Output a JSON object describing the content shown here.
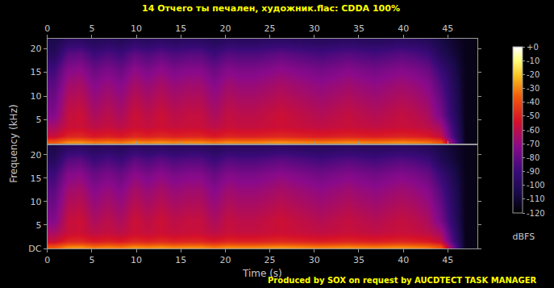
{
  "chart_data": {
    "type": "heatmap",
    "title": "14 Отчего ты печален, художник.flac: CDDA 100%",
    "footer": "Produced by SOX on request by AUCDTECT TASK MANAGER",
    "x_label": "Time (s)",
    "y_label": "Frequency (kHz)",
    "xlim": [
      0,
      48.3
    ],
    "xticks": [
      0,
      5,
      10,
      15,
      20,
      25,
      30,
      35,
      40,
      45
    ],
    "ylim": [
      0,
      22.05
    ],
    "grid": false,
    "x": [
      0.75,
      2.25,
      3.75,
      5.25,
      6.75,
      8.25,
      9.75,
      11.25,
      12.75,
      14.25,
      15.75,
      17.25,
      18.75,
      20.25,
      21.75,
      23.25,
      24.75,
      26.25,
      27.75,
      29.25,
      30.75,
      32.25,
      33.75,
      35.25,
      36.75,
      38.25,
      39.75,
      41.25,
      42.75,
      44.25,
      46.9
    ],
    "y": [
      0.4,
      1.5,
      3.5,
      6,
      9,
      12.5,
      16,
      19,
      21.5
    ],
    "channels": [
      {
        "yticks": [
          5,
          10,
          15,
          20
        ],
        "z": [
          [
            -37,
            -29,
            -28,
            -32,
            -30,
            -32,
            -28,
            -30,
            -28,
            -30,
            -29,
            -29,
            -32,
            -29,
            -30,
            -30,
            -29,
            -28,
            -29,
            -30,
            -31,
            -30,
            -29,
            -30,
            -31,
            -30,
            -29,
            -30,
            -32,
            -38,
            -115
          ],
          [
            -57,
            -49,
            -48,
            -52,
            -50,
            -52,
            -48,
            -50,
            -48,
            -50,
            -49,
            -49,
            -52,
            -49,
            -50,
            -50,
            -49,
            -48,
            -49,
            -50,
            -51,
            -50,
            -49,
            -50,
            -51,
            -50,
            -49,
            -50,
            -52,
            -58,
            -115
          ],
          [
            -65,
            -57,
            -56,
            -60,
            -58,
            -60,
            -56,
            -58,
            -56,
            -58,
            -57,
            -57,
            -60,
            -57,
            -58,
            -58,
            -57,
            -56,
            -57,
            -58,
            -59,
            -58,
            -57,
            -58,
            -59,
            -58,
            -57,
            -58,
            -60,
            -66,
            -115
          ],
          [
            -74,
            -58,
            -56,
            -64,
            -60,
            -64,
            -56,
            -60,
            -56,
            -60,
            -58,
            -58,
            -64,
            -58,
            -60,
            -60,
            -58,
            -56,
            -58,
            -60,
            -62,
            -60,
            -58,
            -60,
            -62,
            -60,
            -58,
            -60,
            -64,
            -76,
            -115
          ],
          [
            -78,
            -62,
            -60,
            -68,
            -64,
            -68,
            -60,
            -64,
            -60,
            -64,
            -62,
            -62,
            -68,
            -62,
            -64,
            -64,
            -62,
            -60,
            -62,
            -64,
            -66,
            -64,
            -62,
            -64,
            -66,
            -64,
            -62,
            -64,
            -68,
            -80,
            -115
          ],
          [
            -83,
            -67,
            -65,
            -73,
            -69,
            -73,
            -65,
            -69,
            -65,
            -69,
            -67,
            -67,
            -73,
            -67,
            -69,
            -69,
            -67,
            -65,
            -67,
            -69,
            -71,
            -69,
            -67,
            -69,
            -71,
            -69,
            -67,
            -69,
            -73,
            -85,
            -115
          ],
          [
            -90,
            -74,
            -72,
            -80,
            -76,
            -80,
            -72,
            -76,
            -72,
            -76,
            -74,
            -74,
            -80,
            -74,
            -76,
            -76,
            -74,
            -72,
            -74,
            -76,
            -78,
            -76,
            -74,
            -76,
            -78,
            -76,
            -74,
            -76,
            -80,
            -92,
            -115
          ],
          [
            -100,
            -84,
            -82,
            -90,
            -86,
            -90,
            -82,
            -86,
            -82,
            -86,
            -84,
            -84,
            -90,
            -84,
            -86,
            -86,
            -84,
            -82,
            -84,
            -86,
            -88,
            -86,
            -84,
            -86,
            -88,
            -86,
            -84,
            -86,
            -90,
            -102,
            -115
          ],
          [
            -105,
            -97,
            -96,
            -100,
            -98,
            -100,
            -96,
            -98,
            -96,
            -98,
            -97,
            -97,
            -100,
            -97,
            -98,
            -98,
            -97,
            -96,
            -97,
            -98,
            -99,
            -98,
            -97,
            -98,
            -99,
            -98,
            -97,
            -98,
            -100,
            -106,
            -115
          ]
        ]
      },
      {
        "yticks": [
          {
            "value": 0,
            "label": "DC"
          },
          5,
          10,
          15,
          20
        ],
        "z": [
          [
            -37,
            -29,
            -28,
            -32,
            -30,
            -32,
            -28,
            -30,
            -28,
            -30,
            -29,
            -29,
            -32,
            -29,
            -30,
            -30,
            -29,
            -28,
            -29,
            -30,
            -31,
            -30,
            -29,
            -30,
            -31,
            -30,
            -29,
            -30,
            -32,
            -38,
            -115
          ],
          [
            -57,
            -49,
            -48,
            -52,
            -50,
            -52,
            -48,
            -50,
            -48,
            -50,
            -49,
            -49,
            -52,
            -49,
            -50,
            -50,
            -49,
            -48,
            -49,
            -50,
            -51,
            -50,
            -49,
            -50,
            -51,
            -50,
            -49,
            -50,
            -52,
            -58,
            -115
          ],
          [
            -65,
            -57,
            -56,
            -60,
            -58,
            -60,
            -56,
            -58,
            -56,
            -58,
            -57,
            -57,
            -60,
            -57,
            -58,
            -58,
            -57,
            -56,
            -57,
            -58,
            -59,
            -58,
            -57,
            -58,
            -59,
            -58,
            -57,
            -58,
            -60,
            -66,
            -115
          ],
          [
            -74,
            -58,
            -56,
            -64,
            -60,
            -64,
            -56,
            -60,
            -56,
            -60,
            -58,
            -58,
            -64,
            -58,
            -60,
            -60,
            -58,
            -56,
            -58,
            -60,
            -62,
            -60,
            -58,
            -60,
            -62,
            -60,
            -58,
            -60,
            -64,
            -76,
            -115
          ],
          [
            -78,
            -62,
            -60,
            -68,
            -64,
            -68,
            -60,
            -64,
            -60,
            -64,
            -62,
            -62,
            -68,
            -62,
            -64,
            -64,
            -62,
            -60,
            -62,
            -64,
            -66,
            -64,
            -62,
            -64,
            -66,
            -64,
            -62,
            -64,
            -68,
            -80,
            -115
          ],
          [
            -83,
            -67,
            -65,
            -73,
            -69,
            -73,
            -65,
            -69,
            -65,
            -69,
            -67,
            -67,
            -73,
            -67,
            -69,
            -69,
            -67,
            -65,
            -67,
            -69,
            -71,
            -69,
            -67,
            -69,
            -71,
            -69,
            -67,
            -69,
            -73,
            -85,
            -115
          ],
          [
            -90,
            -74,
            -72,
            -80,
            -76,
            -80,
            -72,
            -76,
            -72,
            -76,
            -74,
            -74,
            -80,
            -74,
            -76,
            -76,
            -74,
            -72,
            -74,
            -76,
            -78,
            -76,
            -74,
            -76,
            -78,
            -76,
            -74,
            -76,
            -80,
            -92,
            -115
          ],
          [
            -100,
            -84,
            -82,
            -90,
            -86,
            -90,
            -82,
            -86,
            -82,
            -86,
            -84,
            -84,
            -90,
            -84,
            -86,
            -86,
            -84,
            -82,
            -84,
            -86,
            -88,
            -86,
            -84,
            -86,
            -88,
            -86,
            -84,
            -86,
            -90,
            -102,
            -115
          ],
          [
            -105,
            -97,
            -96,
            -100,
            -98,
            -100,
            -96,
            -98,
            -96,
            -98,
            -97,
            -97,
            -100,
            -97,
            -98,
            -98,
            -97,
            -96,
            -97,
            -98,
            -99,
            -98,
            -97,
            -98,
            -99,
            -98,
            -97,
            -98,
            -100,
            -106,
            -115
          ]
        ]
      }
    ],
    "colorbar": {
      "title": "dBFS",
      "range": [
        -120,
        0
      ],
      "ticks": [
        {
          "value": 0,
          "label": "+0"
        },
        -10,
        -20,
        -30,
        -40,
        -50,
        -60,
        -70,
        -80,
        -90,
        -100,
        -110,
        -120
      ]
    }
  }
}
